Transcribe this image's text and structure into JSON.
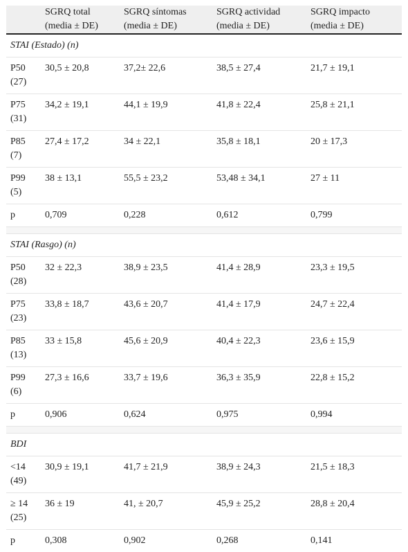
{
  "table": {
    "header": [
      "SGRQ total (media ± DE)",
      "SGRQ síntomas (media ± DE)",
      "SGRQ actividad (media ± DE)",
      "SGRQ impacto (media ± DE)"
    ],
    "sections": [
      {
        "title": "STAI (Estado) (n)",
        "rows": [
          {
            "label": "P50",
            "n": "(27)",
            "cells": [
              "30,5 ± 20,8",
              "37,2± 22,6",
              "38,5 ± 27,4",
              "21,7 ± 19,1"
            ]
          },
          {
            "label": "P75",
            "n": "(31)",
            "cells": [
              "34,2 ± 19,1",
              "44,1 ± 19,9",
              "41,8 ± 22,4",
              "25,8 ± 21,1"
            ]
          },
          {
            "label": "P85",
            "n": "(7)",
            "cells": [
              "27,4 ± 17,2",
              "34 ± 22,1",
              "35,8 ± 18,1",
              "20 ± 17,3"
            ]
          },
          {
            "label": "P99",
            "n": "(5)",
            "cells": [
              "38 ± 13,1",
              "55,5 ± 23,2",
              "53,48 ± 34,1",
              "27 ± 11"
            ]
          },
          {
            "label": "p",
            "cells": [
              "0,709",
              "0,228",
              "0,612",
              "0,799"
            ]
          }
        ]
      },
      {
        "title": "STAI (Rasgo) (n)",
        "rows": [
          {
            "label": "P50",
            "n": "(28)",
            "cells": [
              "32 ± 22,3",
              "38,9 ± 23,5",
              "41,4 ± 28,9",
              "23,3 ± 19,5"
            ]
          },
          {
            "label": "P75",
            "n": "(23)",
            "cells": [
              "33,8 ± 18,7",
              "43,6 ± 20,7",
              "41,4 ± 17,9",
              "24,7 ± 22,4"
            ]
          },
          {
            "label": "P85",
            "n": "(13)",
            "cells": [
              "33 ± 15,8",
              "45,6 ± 20,9",
              "40,4 ± 22,3",
              "23,6 ± 15,9"
            ]
          },
          {
            "label": "P99",
            "n": "(6)",
            "cells": [
              "27,3 ± 16,6",
              "33,7 ± 19,6",
              "36,3 ± 35,9",
              "22,8 ± 15,2"
            ]
          },
          {
            "label": "p",
            "cells": [
              "0,906",
              "0,624",
              "0,975",
              "0,994"
            ]
          }
        ]
      },
      {
        "title": "BDI",
        "rows": [
          {
            "label": "<14",
            "n": "(49)",
            "cells": [
              "30,9 ± 19,1",
              "41,7 ± 21,9",
              "38,9 ± 24,3",
              "21,5 ± 18,3"
            ]
          },
          {
            "label": "≥ 14",
            "n": "(25)",
            "cells": [
              "36 ± 19",
              "41, ± 20,7",
              "45,9 ± 25,2",
              "28,8 ± 20,4"
            ]
          },
          {
            "label": "p",
            "cells": [
              "0,308",
              "0,902",
              "0,268",
              "0,141"
            ]
          }
        ]
      }
    ]
  }
}
